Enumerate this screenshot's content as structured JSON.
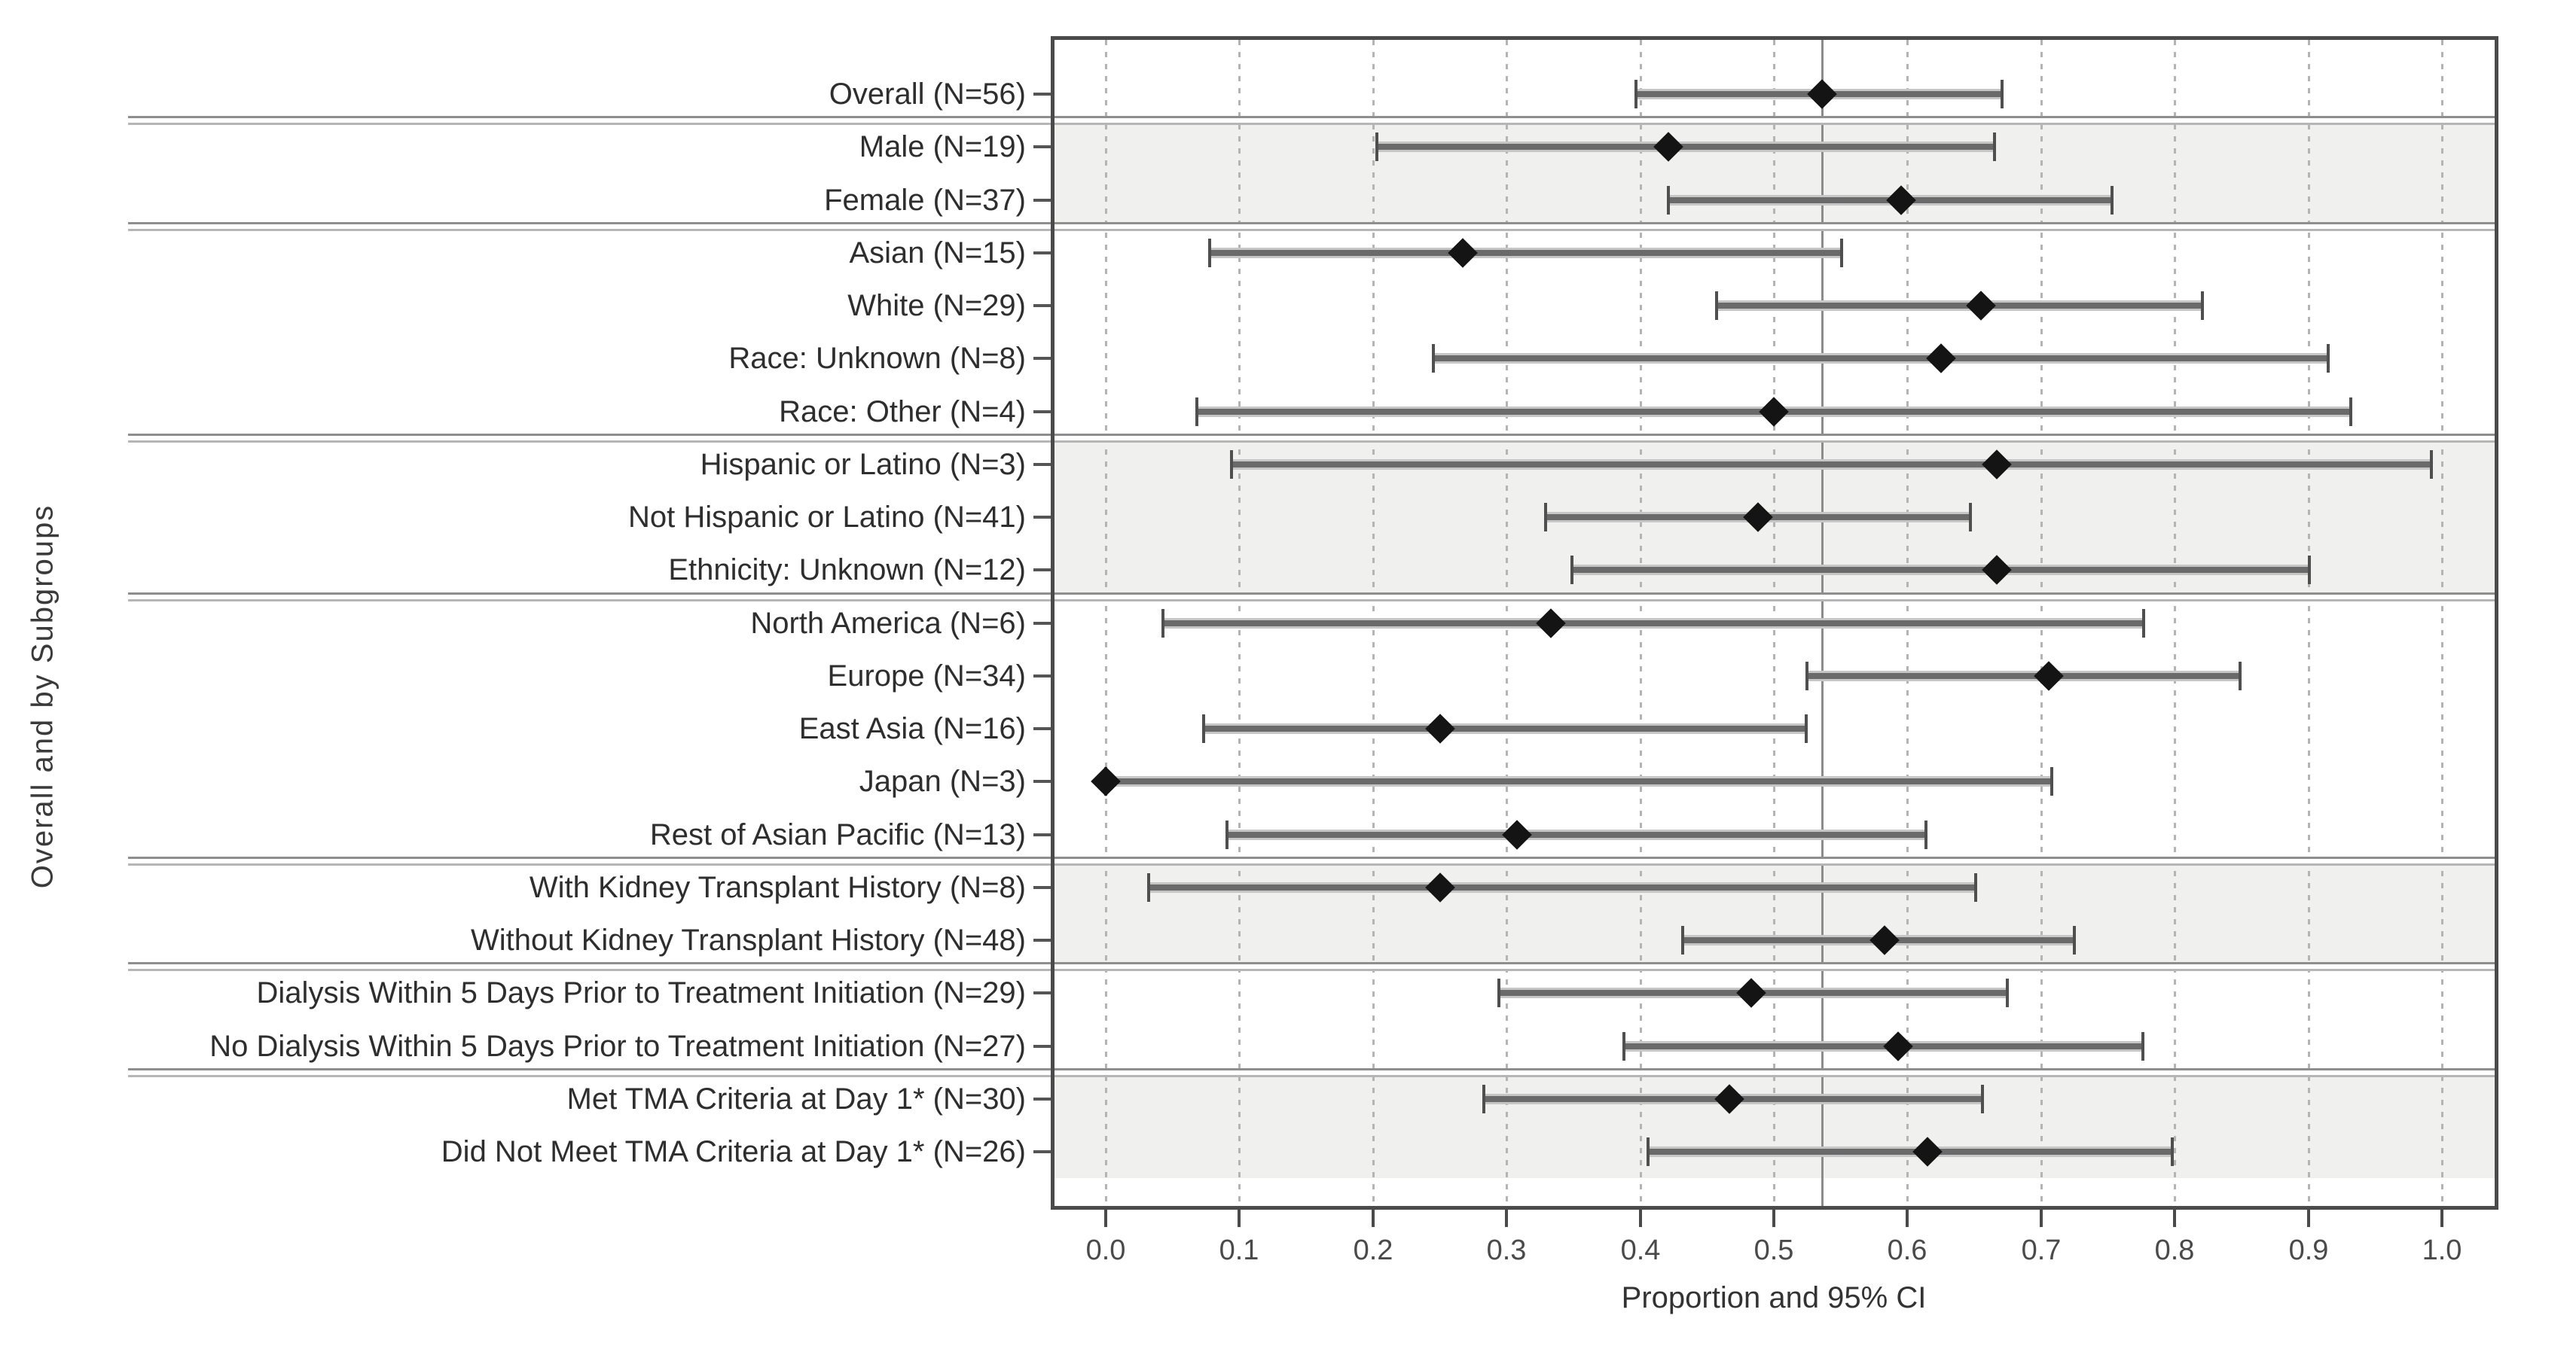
{
  "figure": {
    "x_axis_label": "Proportion and 95% CI",
    "y_axis_label": "Overall and by Subgroups",
    "x_tick_labels": [
      "0.0",
      "0.1",
      "0.2",
      "0.3",
      "0.4",
      "0.5",
      "0.6",
      "0.7",
      "0.8",
      "0.9",
      "1.0"
    ]
  },
  "colors": {
    "diamond": "#141414",
    "ci_core": "#6a6a6a",
    "ci_halo": "#c6c6c6",
    "ci_cap": "#4f4f4f",
    "frame": "#4b4b4b",
    "gridline": "#b4b4b4",
    "reference_line": "#8c8c8c",
    "shaded_band": "#f0f0ee",
    "separator_dark": "#8e8e8e",
    "separator_light": "#b6b6b6",
    "text": "#333333"
  },
  "chart_data": {
    "type": "scatter",
    "subtype": "forest-plot",
    "title": "",
    "xlabel": "Proportion and 95% CI",
    "ylabel": "Overall and by Subgroups",
    "xlim": [
      0.0,
      1.0
    ],
    "x_ticks": [
      0.0,
      0.1,
      0.2,
      0.3,
      0.4,
      0.5,
      0.6,
      0.7,
      0.8,
      0.9,
      1.0
    ],
    "grid": "vertical dashed line at every 0.1",
    "legend": "none",
    "reference_line_x": 0.536,
    "rows": [
      {
        "label": "Overall (N=56)",
        "group": "overall",
        "shaded": false,
        "n": 56,
        "estimate": 0.536,
        "ci_low": 0.397,
        "ci_high": 0.671
      },
      {
        "label": "Male (N=19)",
        "group": "sex",
        "shaded": true,
        "n": 19,
        "estimate": 0.421,
        "ci_low": 0.203,
        "ci_high": 0.665
      },
      {
        "label": "Female (N=37)",
        "group": "sex",
        "shaded": true,
        "n": 37,
        "estimate": 0.595,
        "ci_low": 0.421,
        "ci_high": 0.753
      },
      {
        "label": "Asian (N=15)",
        "group": "race",
        "shaded": false,
        "n": 15,
        "estimate": 0.267,
        "ci_low": 0.078,
        "ci_high": 0.551
      },
      {
        "label": "White (N=29)",
        "group": "race",
        "shaded": false,
        "n": 29,
        "estimate": 0.655,
        "ci_low": 0.457,
        "ci_high": 0.821
      },
      {
        "label": "Race: Unknown (N=8)",
        "group": "race",
        "shaded": false,
        "n": 8,
        "estimate": 0.625,
        "ci_low": 0.245,
        "ci_high": 0.915
      },
      {
        "label": "Race: Other (N=4)",
        "group": "race",
        "shaded": false,
        "n": 4,
        "estimate": 0.5,
        "ci_low": 0.068,
        "ci_high": 0.932
      },
      {
        "label": "Hispanic or Latino (N=3)",
        "group": "ethnicity",
        "shaded": true,
        "n": 3,
        "estimate": 0.667,
        "ci_low": 0.094,
        "ci_high": 0.992
      },
      {
        "label": "Not Hispanic or Latino (N=41)",
        "group": "ethnicity",
        "shaded": true,
        "n": 41,
        "estimate": 0.488,
        "ci_low": 0.329,
        "ci_high": 0.647
      },
      {
        "label": "Ethnicity: Unknown (N=12)",
        "group": "ethnicity",
        "shaded": true,
        "n": 12,
        "estimate": 0.667,
        "ci_low": 0.349,
        "ci_high": 0.901
      },
      {
        "label": "North America (N=6)",
        "group": "region",
        "shaded": false,
        "n": 6,
        "estimate": 0.333,
        "ci_low": 0.043,
        "ci_high": 0.777
      },
      {
        "label": "Europe (N=34)",
        "group": "region",
        "shaded": false,
        "n": 34,
        "estimate": 0.706,
        "ci_low": 0.525,
        "ci_high": 0.849
      },
      {
        "label": "East Asia (N=16)",
        "group": "region",
        "shaded": false,
        "n": 16,
        "estimate": 0.25,
        "ci_low": 0.073,
        "ci_high": 0.524
      },
      {
        "label": "Japan (N=3)",
        "group": "region",
        "shaded": false,
        "n": 3,
        "estimate": 0.0,
        "ci_low": 0.0,
        "ci_high": 0.708
      },
      {
        "label": "Rest of Asian Pacific (N=13)",
        "group": "region",
        "shaded": false,
        "n": 13,
        "estimate": 0.308,
        "ci_low": 0.091,
        "ci_high": 0.614
      },
      {
        "label": "With Kidney Transplant History (N=8)",
        "group": "kidney-transplant",
        "shaded": true,
        "n": 8,
        "estimate": 0.25,
        "ci_low": 0.032,
        "ci_high": 0.651
      },
      {
        "label": "Without Kidney Transplant History (N=48)",
        "group": "kidney-transplant",
        "shaded": true,
        "n": 48,
        "estimate": 0.583,
        "ci_low": 0.432,
        "ci_high": 0.725
      },
      {
        "label": "Dialysis Within 5 Days Prior to Treatment Initiation (N=29)",
        "group": "dialysis",
        "shaded": false,
        "n": 29,
        "estimate": 0.483,
        "ci_low": 0.294,
        "ci_high": 0.675
      },
      {
        "label": "No Dialysis Within 5 Days Prior to Treatment Initiation (N=27)",
        "group": "dialysis",
        "shaded": false,
        "n": 27,
        "estimate": 0.593,
        "ci_low": 0.388,
        "ci_high": 0.776
      },
      {
        "label": "Met TMA Criteria at Day 1* (N=30)",
        "group": "tma",
        "shaded": true,
        "n": 30,
        "estimate": 0.467,
        "ci_low": 0.283,
        "ci_high": 0.656
      },
      {
        "label": "Did Not Meet TMA Criteria at Day 1* (N=26)",
        "group": "tma",
        "shaded": true,
        "n": 26,
        "estimate": 0.615,
        "ci_low": 0.406,
        "ci_high": 0.798
      }
    ]
  }
}
